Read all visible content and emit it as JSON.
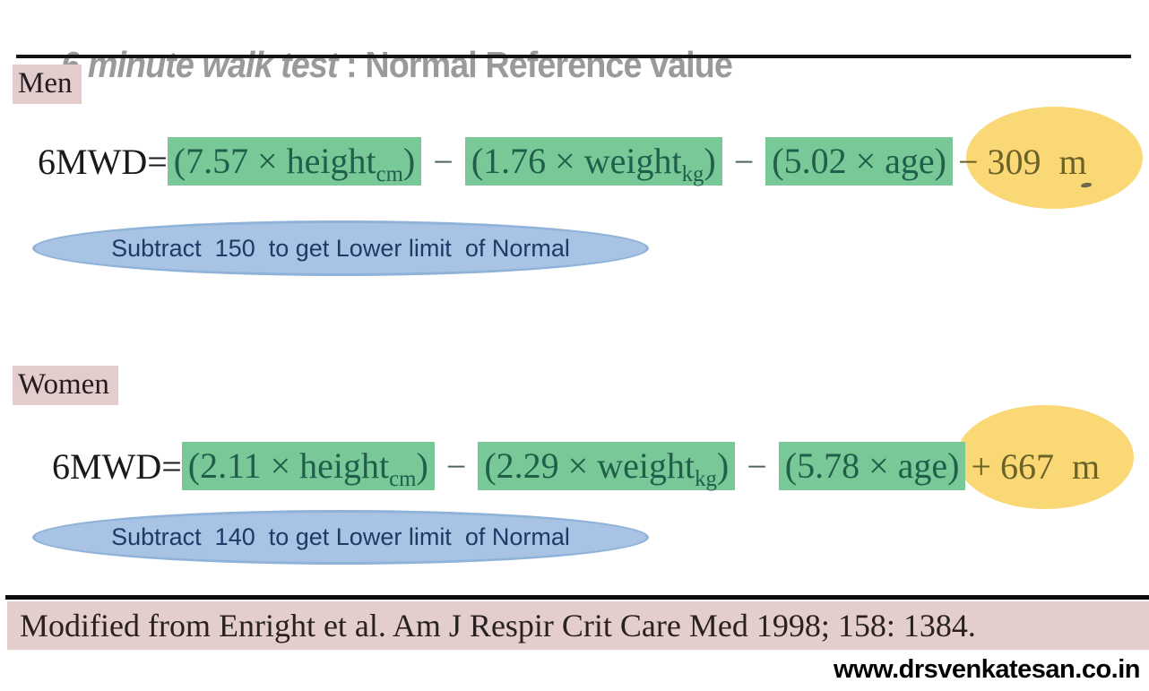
{
  "title": {
    "italic_part": "6 minute walk test",
    "rest_part": " : Normal Reference value"
  },
  "sections": {
    "men": {
      "label": "Men",
      "formula": {
        "lhs": "6MWD=",
        "separator": "−",
        "terms": [
          {
            "pre": "(7.57 × height",
            "sub": "cm",
            "post": ")"
          },
          {
            "pre": "(1.76 × weight",
            "sub": "kg",
            "post": ")"
          },
          {
            "pre": "(5.02 × age)",
            "sub": "",
            "post": ""
          }
        ],
        "tail": "− 309  m"
      },
      "note": "Subtract  150  to get Lower limit  of Normal"
    },
    "women": {
      "label": "Women",
      "formula": {
        "lhs": "6MWD=",
        "separator": "−",
        "terms": [
          {
            "pre": "(2.11 × height",
            "sub": "cm",
            "post": ")"
          },
          {
            "pre": "(2.29 × weight",
            "sub": "kg",
            "post": ")"
          },
          {
            "pre": "(5.78 × age)",
            "sub": "",
            "post": ""
          }
        ],
        "tail": "+ 667  m"
      },
      "note": "Subtract  140  to get Lower limit  of Normal"
    }
  },
  "citation": "Modified from Enright et al. Am J Respir Crit Care Med 1998; 158: 1384.",
  "footer": "www.drsvenkatesan.co.in",
  "colors": {
    "title_gray": "#9a9a9a",
    "highlight_green": "#79c998",
    "highlight_green_text": "#20604a",
    "ellipse_yellow": "#fbd876",
    "tail_olive_text": "#6b6227",
    "ellipse_blue_fill": "#a9c3e4",
    "ellipse_blue_border": "#8fb2d9",
    "ellipse_blue_text": "#1e3a66",
    "chip_pink": "#e3cdcc",
    "citation_pink": "#e4cecd",
    "rule_black": "#141414"
  }
}
